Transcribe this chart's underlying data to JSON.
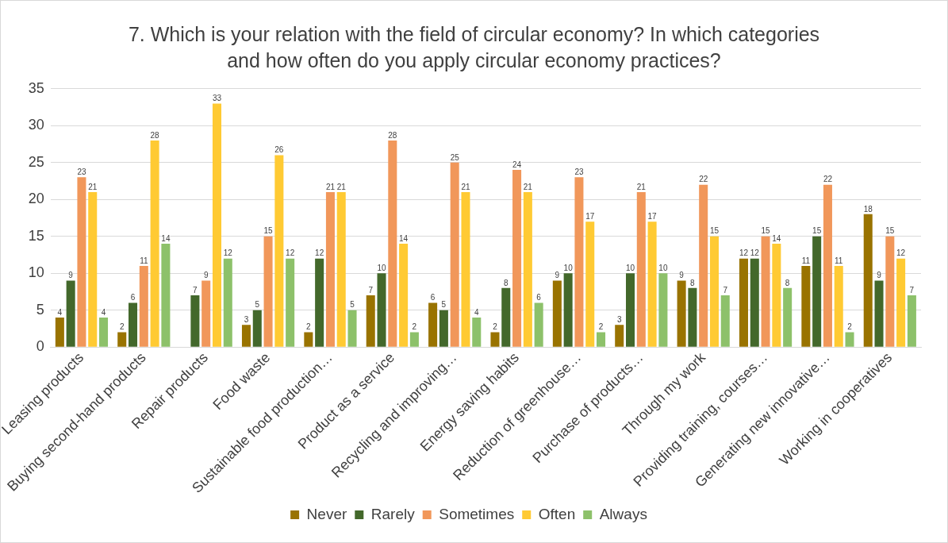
{
  "chart_data": {
    "type": "bar",
    "title": "7. Which is your relation with the field of circular economy? In which categories and how often do you apply circular economy practices?",
    "categories": [
      "Leasing products",
      "Buying second-hand products",
      "Repair products",
      "Food waste",
      "Sustainable food production…",
      "Product as a service",
      "Recycling and improving…",
      "Energy saving habits",
      "Reduction of greenhouse…",
      "Purchase of products…",
      "Through my work",
      "Providing training, courses…",
      "Generating new innovative…",
      "Working in cooperatives"
    ],
    "series": [
      {
        "name": "Never",
        "color": "#997300",
        "values": [
          4,
          2,
          null,
          3,
          2,
          7,
          6,
          2,
          9,
          3,
          9,
          12,
          11,
          18
        ]
      },
      {
        "name": "Rarely",
        "color": "#43682b",
        "values": [
          9,
          6,
          7,
          5,
          12,
          10,
          5,
          8,
          10,
          10,
          8,
          12,
          15,
          9
        ]
      },
      {
        "name": "Sometimes",
        "color": "#f1975a",
        "values": [
          23,
          11,
          9,
          15,
          21,
          28,
          25,
          24,
          23,
          21,
          22,
          15,
          22,
          15
        ]
      },
      {
        "name": "Often",
        "color": "#ffca33",
        "values": [
          21,
          28,
          33,
          26,
          21,
          14,
          21,
          21,
          17,
          17,
          15,
          14,
          11,
          12
        ]
      },
      {
        "name": "Always",
        "color": "#8dc16a",
        "values": [
          4,
          14,
          12,
          12,
          5,
          2,
          4,
          6,
          2,
          10,
          7,
          8,
          2,
          7
        ]
      }
    ],
    "ylim": [
      0,
      35
    ],
    "yticks": [
      0,
      5,
      10,
      15,
      20,
      25,
      30,
      35
    ],
    "grid": "y",
    "legend": "bottom",
    "data_labels": true
  }
}
